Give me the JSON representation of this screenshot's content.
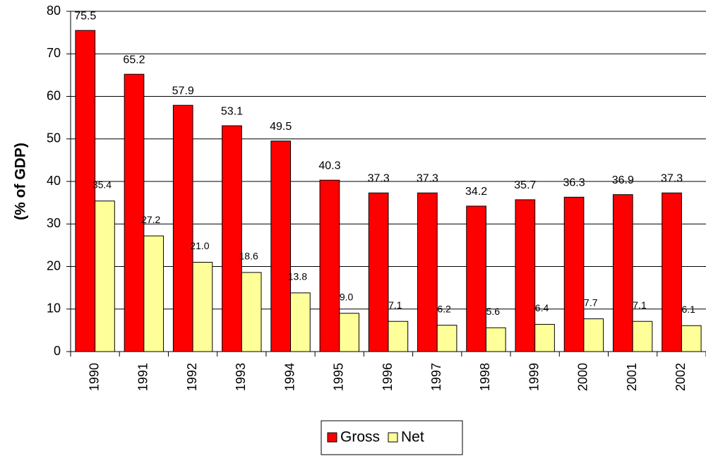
{
  "chart_data": {
    "type": "bar",
    "y_label": "(% of GDP)",
    "categories": [
      "1990",
      "1991",
      "1992",
      "1993",
      "1994",
      "1995",
      "1996",
      "1997",
      "1998",
      "1999",
      "2000",
      "2001",
      "2002"
    ],
    "series": [
      {
        "name": "Gross",
        "color": "#ff0000",
        "values": [
          75.5,
          65.2,
          57.9,
          53.1,
          49.5,
          40.3,
          37.3,
          37.3,
          34.2,
          35.7,
          36.3,
          36.9,
          37.3
        ],
        "value_labels": [
          "75.5",
          "65.2",
          "57.9",
          "53.1",
          "49.5",
          "40.3",
          "37.3",
          "37.3",
          "34.2",
          "35.7",
          "36.3",
          "36.9",
          "37.3"
        ]
      },
      {
        "name": "Net",
        "color": "#ffff99",
        "values": [
          35.4,
          27.2,
          21,
          18.6,
          13.8,
          9,
          7.1,
          6.2,
          5.6,
          6.4,
          7.7,
          7.1,
          6.1
        ],
        "value_labels": [
          "35.4",
          "27.2",
          "21.0",
          "18.6",
          "13.8",
          "9.0",
          "7.1",
          "6.2",
          "5.6",
          "6.4",
          "7.7",
          "7.1",
          "6.1"
        ]
      }
    ],
    "ylim": [
      0,
      80
    ],
    "yticks": [
      0,
      10,
      20,
      30,
      40,
      50,
      60,
      70,
      80
    ],
    "grid": true,
    "legend": "bottom"
  }
}
